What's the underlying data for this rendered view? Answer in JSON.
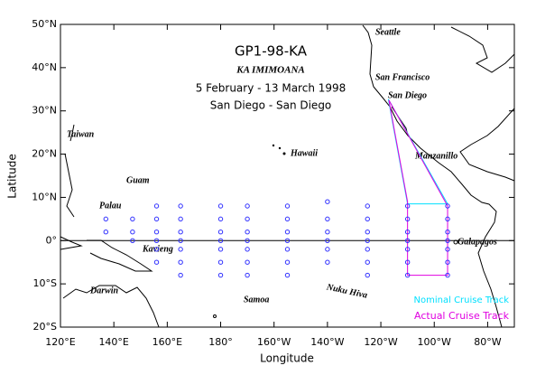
{
  "chart_data": {
    "type": "map",
    "title": "GP1-98-KA",
    "subtitle": "KA IMIMOANA",
    "dates": "5 February - 13 March 1998",
    "route": "San Diego - San Diego",
    "x_label": "Longitude",
    "y_label": "Latitude",
    "xlim": [
      120,
      290
    ],
    "ylim": [
      -20,
      50
    ],
    "xticks": [
      {
        "value": 120,
        "label": "120°E"
      },
      {
        "value": 140,
        "label": "140°E"
      },
      {
        "value": 160,
        "label": "160°E"
      },
      {
        "value": 180,
        "label": "180°"
      },
      {
        "value": 200,
        "label": "160°W"
      },
      {
        "value": 220,
        "label": "140°W"
      },
      {
        "value": 240,
        "label": "120°W"
      },
      {
        "value": 260,
        "label": "100°W"
      },
      {
        "value": 280,
        "label": "80°W"
      }
    ],
    "yticks": [
      {
        "value": -20,
        "label": "20°S"
      },
      {
        "value": -10,
        "label": "10°S"
      },
      {
        "value": 0,
        "label": "0°"
      },
      {
        "value": 10,
        "label": "10°N"
      },
      {
        "value": 20,
        "label": "20°N"
      },
      {
        "value": 30,
        "label": "30°N"
      },
      {
        "value": 40,
        "label": "40°N"
      },
      {
        "value": 50,
        "label": "50°N"
      }
    ],
    "equator": true,
    "stations": {
      "color": "#3030ff",
      "x": [
        137,
        137,
        147,
        147,
        147,
        156,
        156,
        156,
        156,
        156,
        156,
        165,
        165,
        165,
        165,
        165,
        165,
        165,
        180,
        180,
        180,
        180,
        180,
        180,
        180,
        190,
        190,
        190,
        190,
        190,
        190,
        190,
        205,
        205,
        205,
        205,
        205,
        205,
        205,
        220,
        220,
        220,
        220,
        220,
        220,
        235,
        235,
        235,
        235,
        235,
        235,
        235,
        250,
        250,
        250,
        250,
        250,
        250,
        250,
        265,
        265,
        265,
        265,
        265,
        265,
        265
      ],
      "y": [
        5,
        2,
        5,
        2,
        0,
        8,
        5,
        2,
        0,
        -2,
        -5,
        8,
        5,
        2,
        0,
        -2,
        -5,
        -8,
        8,
        5,
        2,
        0,
        -2,
        -5,
        -8,
        8,
        5,
        2,
        0,
        -2,
        -5,
        -8,
        8,
        5,
        2,
        0,
        -2,
        -5,
        -8,
        9,
        5,
        2,
        0,
        -2,
        -5,
        8,
        5,
        2,
        0,
        -2,
        -5,
        -8,
        8,
        5,
        2,
        0,
        -2,
        -5,
        -8,
        8,
        5,
        2,
        0,
        -2,
        -5,
        -8
      ]
    },
    "series": [
      {
        "name": "Nominal Cruise Track",
        "color": "#00e0ff",
        "x": [
          242.8,
          250,
          265,
          242.8
        ],
        "y": [
          32.7,
          8.5,
          8.5,
          32.7
        ]
      },
      {
        "name": "Actual Cruise Track",
        "color": "#e000e0",
        "x": [
          243,
          250,
          250,
          265,
          265,
          243
        ],
        "y": [
          32.5,
          9,
          -8,
          -8,
          8,
          32.5
        ]
      }
    ],
    "places": [
      "Seattle",
      "San Francisco",
      "San Diego",
      "Manzanillo",
      "Hawaii",
      "Taiwan",
      "Guam",
      "Palau",
      "Kavieng",
      "Darwin",
      "Samoa",
      "Nuku Hiva",
      "Galapagos"
    ],
    "legend": "lower right"
  }
}
